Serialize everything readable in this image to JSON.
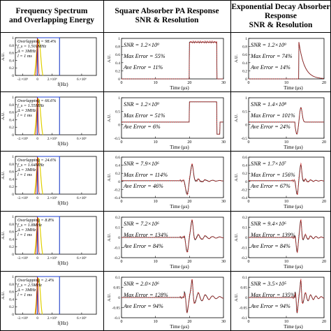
{
  "headers": {
    "col1": [
      "Frequency Spectrum",
      "and Overlapping Energy"
    ],
    "col2": [
      "Square Absorber PA Response",
      "SNR & Resolution"
    ],
    "col3": [
      "Exponential Decay Absorber",
      "Response",
      "SNR & Resolution"
    ]
  },
  "colors": {
    "spectrum_filter": "#1f3fc8",
    "spectrum_signal": "#e0d000",
    "spectrum_peak": "#c00000",
    "pa_true": "#303030",
    "pa_recovered": "#cc2020",
    "grid": "#000000"
  },
  "chart_data": {
    "type": "line",
    "grid": "5 rows x 3 columns of panels",
    "spectrum_panels": {
      "ylabel": "A.U.",
      "xlabel": "f(Hz)",
      "xticks": [
        "-2.×10⁶",
        "0",
        "2.×10⁶",
        "6.×10⁶"
      ],
      "yticks": [
        "0",
        "0.2",
        "0.4",
        "0.6",
        "0.8",
        "1"
      ],
      "rows": [
        {
          "overlapping": "Overlapping = 98.4%",
          "fs": "f_s = 1.501MHz",
          "delta": "Δ = 3MHz",
          "duration": "l = 1 ms",
          "fs_mhz": 1.501,
          "overlap_pct": 98.4
        },
        {
          "overlapping": "Overlapping = 66.6%",
          "fs": "f_s = 1.55MHz",
          "delta": "Δ = 3MHz",
          "duration": "l = 1 ms",
          "fs_mhz": 1.55,
          "overlap_pct": 66.6
        },
        {
          "overlapping": "Overlapping = 24.6%",
          "fs": "f_s = 1.64MHz",
          "delta": "Δ = 3MHz",
          "duration": "l = 1 ms",
          "fs_mhz": 1.64,
          "overlap_pct": 24.6
        },
        {
          "overlapping": "Overlapping = 8.8%",
          "fs": "f_s = 1.8MHz",
          "delta": "Δ = 3MHz",
          "duration": "l = 1 ms",
          "fs_mhz": 1.8,
          "overlap_pct": 8.8
        },
        {
          "overlapping": "Overlapping = 2.4%",
          "fs": "f_s = 2.5MHz",
          "delta": "Δ = 3MHz",
          "duration": "l = 1 ms",
          "fs_mhz": 2.5,
          "overlap_pct": 2.4
        }
      ]
    },
    "square_panels": {
      "ylabel": "A.U.",
      "xlabel": "Time (μs)",
      "xticks": [
        "0",
        "10",
        "20",
        "30"
      ],
      "xlim": [
        0,
        30
      ],
      "rows": [
        {
          "snr": "SNR = 1.2×10⁹",
          "max_error": "Max Error = 55%",
          "ave_error": "Ave Error = 11%",
          "yticks": [
            "0",
            "0.2",
            "0.4",
            "0.6",
            "0.8",
            "1"
          ],
          "ylim": [
            0,
            1.1
          ]
        },
        {
          "snr": "SNR = 1.2×10⁹",
          "max_error": "Max Error = 51%",
          "ave_error": "Ave Error = 6%",
          "yticks": [
            "-0.5",
            "0",
            "0.5",
            "1"
          ],
          "ylim": [
            -0.8,
            1.2
          ]
        },
        {
          "snr": "SNR = 7.9×10⁶",
          "max_error": "Max Error = 114%",
          "ave_error": "Ave Error = 46%",
          "yticks": [
            "-0.4",
            "-0.2",
            "0",
            "0.2",
            "0.4",
            "0.6"
          ],
          "ylim": [
            -0.5,
            0.7
          ]
        },
        {
          "snr": "SNR = 7.2×10⁶",
          "max_error": "Max Error = 134%",
          "ave_error": "Ave Error = 84%",
          "yticks": [
            "-0.2",
            "-0.1",
            "0",
            "0.1",
            "0.2"
          ],
          "ylim": [
            -0.25,
            0.25
          ]
        },
        {
          "snr": "SNR = 2.0×10⁶",
          "max_error": "Max Error = 128%",
          "ave_error": "Ave Error = 94%",
          "yticks": [
            "-0.1",
            "-0.05",
            "0",
            "0.05",
            "0.1"
          ],
          "ylim": [
            -0.12,
            0.12
          ]
        }
      ]
    },
    "exp_panels": {
      "ylabel": "A.U.",
      "xlabel": "Time (μs)",
      "xticks": [
        "0",
        "10",
        "20"
      ],
      "xlim": [
        0,
        30
      ],
      "rows": [
        {
          "snr": "SNR = 1.2×10⁹",
          "max_error": "Max Error = 74%",
          "ave_error": "Ave Error = 14%",
          "yticks": [
            "0",
            "0.2",
            "0.4",
            "0.6",
            "0.8",
            "1"
          ],
          "ylim": [
            0,
            1.1
          ]
        },
        {
          "snr": "SNR = 1.4×10⁸",
          "max_error": "Max Error = 101%",
          "ave_error": "Ave Error = 24%",
          "yticks": [
            "-0.5",
            "0",
            "0.5",
            "1"
          ],
          "ylim": [
            -0.8,
            1.2
          ]
        },
        {
          "snr": "SNR = 1.7×10⁷",
          "max_error": "Max Error = 156%",
          "ave_error": "Ave Error = 67%",
          "yticks": [
            "-0.4",
            "-0.2",
            "0",
            "0.2",
            "0.4",
            "0.6"
          ],
          "ylim": [
            -0.5,
            0.7
          ]
        },
        {
          "snr": "SNR = 9.4×10⁶",
          "max_error": "Max Error = 139%",
          "ave_error": "Ave Error = 84%",
          "yticks": [
            "-0.2",
            "-0.1",
            "0",
            "0.1",
            "0.2"
          ],
          "ylim": [
            -0.25,
            0.25
          ]
        },
        {
          "snr": "SNR = 3.5×10⁵",
          "max_error": "Max Error = 135%",
          "ave_error": "Ave Error = 94%",
          "yticks": [
            "-0.1",
            "-0.05",
            "0",
            "0.05",
            "0.1"
          ],
          "ylim": [
            -0.12,
            0.12
          ]
        }
      ]
    }
  }
}
